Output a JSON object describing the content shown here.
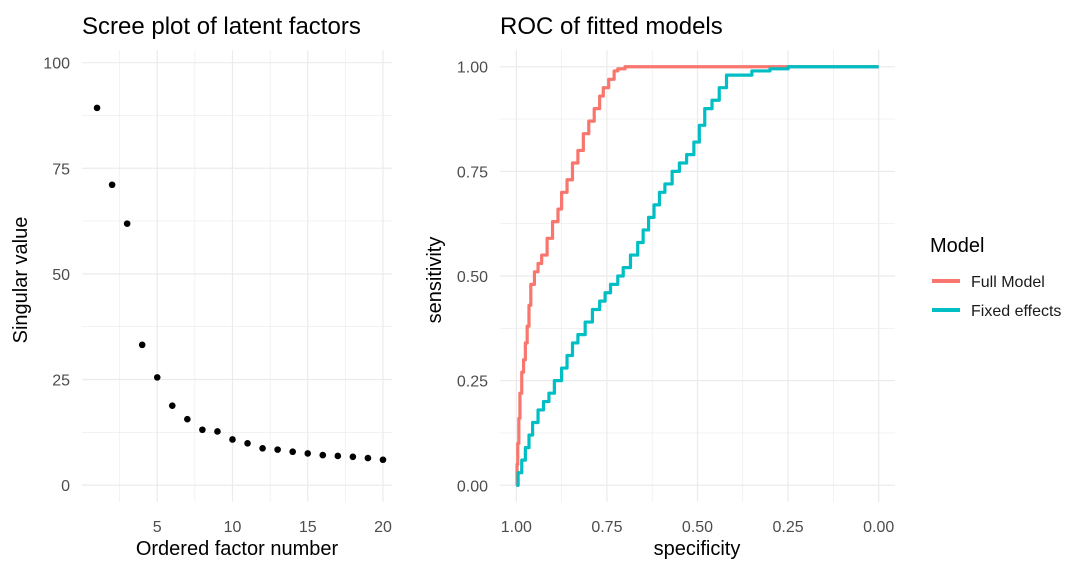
{
  "chart_data": [
    {
      "type": "scatter",
      "title": "Scree plot of latent factors",
      "xlabel": "Ordered factor number",
      "ylabel": "Singular value",
      "xlim": [
        0.0,
        20.6
      ],
      "ylim": [
        -4,
        103
      ],
      "x_ticks": [
        5,
        10,
        15,
        20
      ],
      "x_tick_labels": [
        "5",
        "10",
        "15",
        "20"
      ],
      "y_ticks": [
        0,
        25,
        50,
        75,
        100
      ],
      "y_tick_labels": [
        "0",
        "25",
        "50",
        "75",
        "100"
      ],
      "grid": true,
      "point_color": "#000000",
      "x": [
        1,
        2,
        3,
        4,
        5,
        6,
        7,
        8,
        9,
        10,
        11,
        12,
        13,
        14,
        15,
        16,
        17,
        18,
        19,
        20
      ],
      "y": [
        89.3,
        71.1,
        61.9,
        33.2,
        25.5,
        18.8,
        15.6,
        13.1,
        12.7,
        10.8,
        9.9,
        8.7,
        8.4,
        7.9,
        7.5,
        7.1,
        6.9,
        6.7,
        6.4,
        6.0
      ]
    },
    {
      "type": "line",
      "title": "ROC of fitted models",
      "xlabel": "specificity",
      "ylabel": "sensitivity",
      "x_reversed": true,
      "xlim": [
        1.045,
        -0.045
      ],
      "ylim": [
        -0.04,
        1.04
      ],
      "x_ticks": [
        1.0,
        0.75,
        0.5,
        0.25,
        0.0
      ],
      "x_tick_labels": [
        "1.00",
        "0.75",
        "0.50",
        "0.25",
        "0.00"
      ],
      "y_ticks": [
        0.0,
        0.25,
        0.5,
        0.75,
        1.0
      ],
      "y_tick_labels": [
        "0.00",
        "0.25",
        "0.50",
        "0.75",
        "1.00"
      ],
      "grid": true,
      "legend": {
        "title": "Model",
        "position": "right"
      },
      "series": [
        {
          "name": "Full Model",
          "color": "#F8766D",
          "specificity": [
            1.0,
            0.998,
            0.996,
            0.993,
            0.99,
            0.985,
            0.98,
            0.975,
            0.97,
            0.965,
            0.96,
            0.95,
            0.94,
            0.93,
            0.915,
            0.9,
            0.885,
            0.875,
            0.86,
            0.845,
            0.83,
            0.815,
            0.8,
            0.785,
            0.77,
            0.76,
            0.745,
            0.73,
            0.72,
            0.7,
            0.5,
            0.25,
            0.0
          ],
          "sensitivity": [
            0.0,
            0.05,
            0.1,
            0.16,
            0.22,
            0.27,
            0.3,
            0.34,
            0.38,
            0.43,
            0.48,
            0.51,
            0.53,
            0.55,
            0.59,
            0.63,
            0.66,
            0.7,
            0.73,
            0.77,
            0.8,
            0.84,
            0.87,
            0.9,
            0.93,
            0.95,
            0.97,
            0.99,
            0.995,
            1.0,
            1.0,
            1.0,
            1.0
          ]
        },
        {
          "name": "Fixed effects",
          "color": "#00BFC4",
          "specificity": [
            1.0,
            0.995,
            0.985,
            0.975,
            0.965,
            0.955,
            0.94,
            0.925,
            0.91,
            0.895,
            0.875,
            0.86,
            0.845,
            0.83,
            0.81,
            0.79,
            0.77,
            0.755,
            0.74,
            0.72,
            0.705,
            0.685,
            0.665,
            0.65,
            0.635,
            0.62,
            0.605,
            0.59,
            0.57,
            0.55,
            0.53,
            0.51,
            0.495,
            0.48,
            0.46,
            0.44,
            0.42,
            0.4,
            0.35,
            0.3,
            0.25,
            0.2,
            0.15,
            0.1,
            0.05,
            0.0
          ],
          "sensitivity": [
            0.0,
            0.03,
            0.06,
            0.09,
            0.12,
            0.15,
            0.18,
            0.2,
            0.22,
            0.25,
            0.28,
            0.31,
            0.34,
            0.36,
            0.39,
            0.42,
            0.44,
            0.46,
            0.48,
            0.5,
            0.52,
            0.55,
            0.58,
            0.61,
            0.64,
            0.67,
            0.7,
            0.72,
            0.75,
            0.77,
            0.79,
            0.82,
            0.86,
            0.9,
            0.92,
            0.95,
            0.98,
            0.98,
            0.99,
            0.995,
            1.0,
            1.0,
            1.0,
            1.0,
            1.0,
            1.0
          ]
        }
      ]
    }
  ]
}
